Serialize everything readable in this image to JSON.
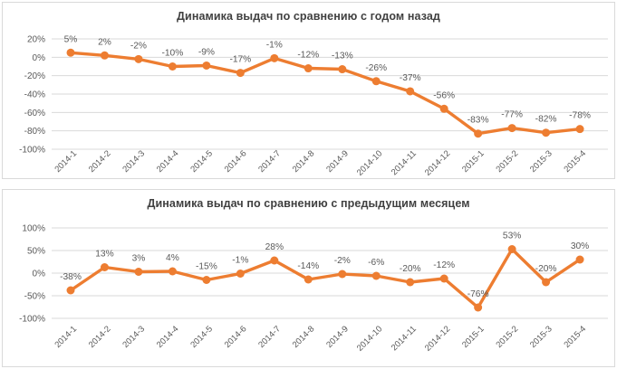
{
  "chart_data": [
    {
      "type": "line",
      "title": "Динамика выдач по сравнению с годом назад",
      "categories": [
        "2014-1",
        "2014-2",
        "2014-3",
        "2014-4",
        "2014-5",
        "2014-6",
        "2014-7",
        "2014-8",
        "2014-9",
        "2014-10",
        "2014-11",
        "2014-12",
        "2015-1",
        "2015-2",
        "2015-3",
        "2015-4"
      ],
      "values": [
        5,
        2,
        -2,
        -10,
        -9,
        -17,
        -1,
        -12,
        -13,
        -26,
        -37,
        -56,
        -83,
        -77,
        -82,
        -78
      ],
      "data_labels": [
        "5%",
        "2%",
        "-2%",
        "-10%",
        "-9%",
        "-17%",
        "-1%",
        "-12%",
        "-13%",
        "-26%",
        "-37%",
        "-56%",
        "-83%",
        "-77%",
        "-82%",
        "-78%"
      ],
      "xlabel": "",
      "ylabel": "",
      "ylim": [
        -100,
        20
      ],
      "yticks": [
        20,
        0,
        -20,
        -40,
        -60,
        -80,
        -100
      ],
      "ytick_labels": [
        "20%",
        "0%",
        "-20%",
        "-40%",
        "-60%",
        "-80%",
        "-100%"
      ],
      "grid": true,
      "legend": "none",
      "colors": {
        "line": "#ED7D31",
        "marker": "#ED7D31",
        "grid": "#D9D9D9",
        "axis_text": "#595959",
        "data_label_text": "#595959",
        "title_text": "#404040",
        "panel_border": "#D9D9D9",
        "background": "#FFFFFF"
      }
    },
    {
      "type": "line",
      "title": "Динамика выдач по сравнению с предыдущим месяцем",
      "categories": [
        "2014-1",
        "2014-2",
        "2014-3",
        "2014-4",
        "2014-5",
        "2014-6",
        "2014-7",
        "2014-8",
        "2014-9",
        "2014-10",
        "2014-11",
        "2014-12",
        "2015-1",
        "2015-2",
        "2015-3",
        "2015-4"
      ],
      "values": [
        -38,
        13,
        3,
        4,
        -15,
        -1,
        28,
        -14,
        -2,
        -6,
        -20,
        -12,
        -76,
        53,
        -20,
        30
      ],
      "data_labels": [
        "-38%",
        "13%",
        "3%",
        "4%",
        "-15%",
        "-1%",
        "28%",
        "-14%",
        "-2%",
        "-6%",
        "-20%",
        "-12%",
        "-76%",
        "53%",
        "-20%",
        "30%"
      ],
      "xlabel": "",
      "ylabel": "",
      "ylim": [
        -100,
        100
      ],
      "yticks": [
        100,
        50,
        0,
        -50,
        -100
      ],
      "ytick_labels": [
        "100%",
        "50%",
        "0%",
        "-50%",
        "-100%"
      ],
      "grid": true,
      "legend": "none",
      "colors": {
        "line": "#ED7D31",
        "marker": "#ED7D31",
        "grid": "#D9D9D9",
        "axis_text": "#595959",
        "data_label_text": "#595959",
        "title_text": "#404040",
        "panel_border": "#D9D9D9",
        "background": "#FFFFFF"
      }
    }
  ]
}
